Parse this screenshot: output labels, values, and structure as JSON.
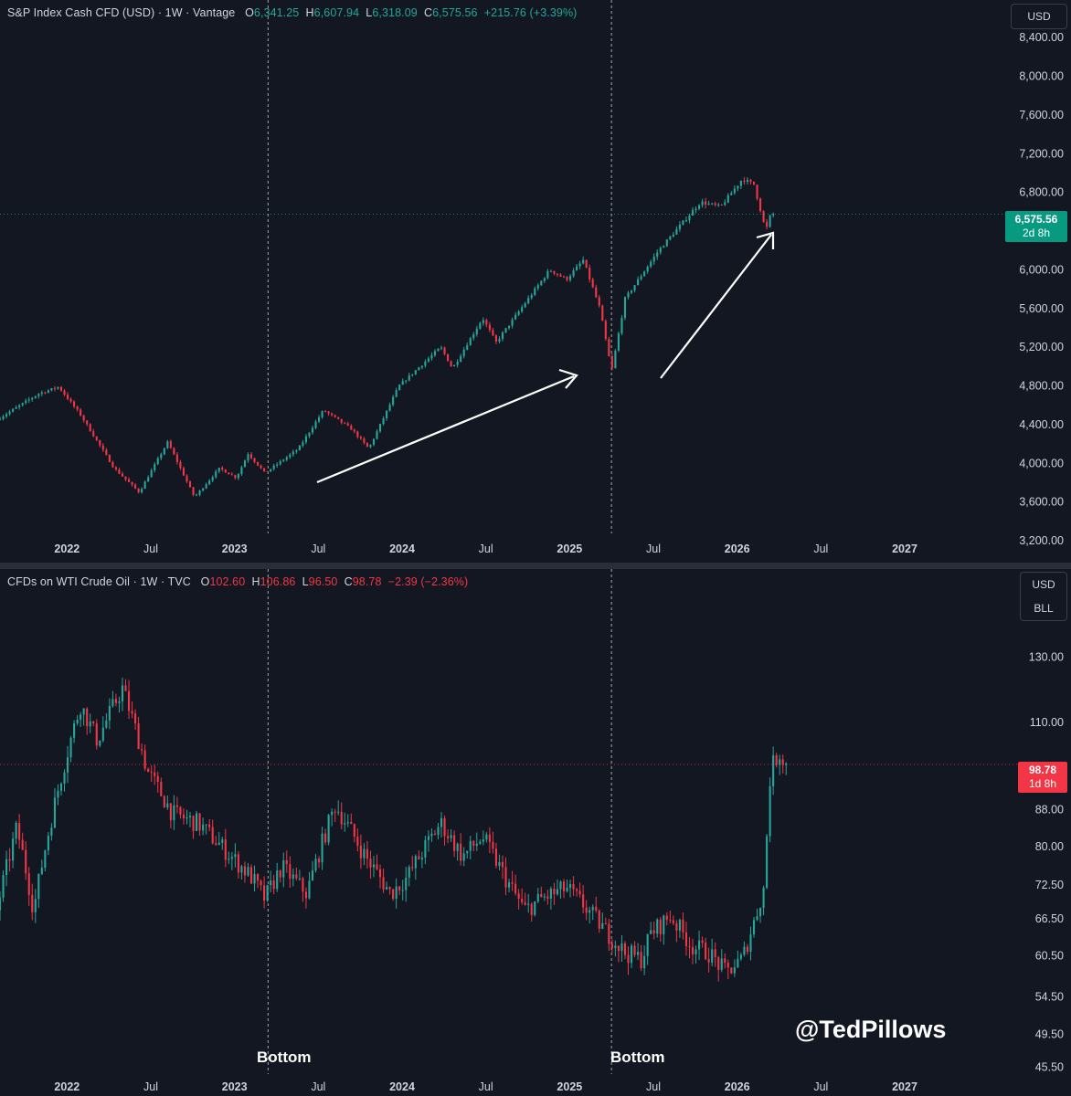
{
  "colors": {
    "up": "#26a69a",
    "down": "#f23645",
    "background": "#131722",
    "text": "#d1d4dc"
  },
  "watermark": "@TedPillows",
  "chart_data": [
    {
      "type": "candlestick",
      "legend": {
        "symbol": "S&P Index Cash CFD (USD) · 1W · Vantage",
        "o_label": "O",
        "open": "6,341.25",
        "h_label": "H",
        "high": "6,607.94",
        "l_label": "L",
        "low": "6,318.09",
        "c_label": "C",
        "close": "6,575.56",
        "change": "+215.76 (+3.39%)"
      },
      "unit_labels": [
        "USD"
      ],
      "last_price": "6,575.56",
      "countdown": "2d 8h",
      "y_ticks": [
        "8,400.00",
        "8,000.00",
        "7,600.00",
        "7,200.00",
        "6,800.00",
        "6,000.00",
        "5,600.00",
        "5,200.00",
        "4,800.00",
        "4,400.00",
        "4,000.00",
        "3,600.00",
        "3,200.00"
      ],
      "y_tick_values": [
        8400,
        8000,
        7600,
        7200,
        6800,
        6000,
        5600,
        5200,
        4800,
        4400,
        4000,
        3600,
        3200
      ],
      "x_ticks": [
        "2022",
        "Jul",
        "2023",
        "Jul",
        "2024",
        "Jul",
        "2025",
        "Jul",
        "2026",
        "Jul",
        "2027"
      ],
      "x_tick_dates": [
        2022.0,
        2022.5,
        2023.0,
        2023.5,
        2024.0,
        2024.5,
        2025.0,
        2025.5,
        2026.0,
        2026.5,
        2027.0
      ],
      "ylim": [
        3200,
        8600
      ],
      "xlim": [
        2021.6,
        2027.6
      ],
      "vertical_markers": [
        2023.2,
        2025.25
      ],
      "anchors": [
        [
          2021.6,
          4450
        ],
        [
          2021.85,
          4720
        ],
        [
          2021.97,
          4790
        ],
        [
          2022.1,
          4500
        ],
        [
          2022.3,
          3950
        ],
        [
          2022.45,
          3700
        ],
        [
          2022.62,
          4220
        ],
        [
          2022.78,
          3650
        ],
        [
          2022.93,
          3950
        ],
        [
          2023.03,
          3850
        ],
        [
          2023.1,
          4100
        ],
        [
          2023.2,
          3900
        ],
        [
          2023.4,
          4150
        ],
        [
          2023.55,
          4550
        ],
        [
          2023.72,
          4350
        ],
        [
          2023.82,
          4150
        ],
        [
          2024.0,
          4800
        ],
        [
          2024.25,
          5200
        ],
        [
          2024.32,
          4980
        ],
        [
          2024.5,
          5500
        ],
        [
          2024.58,
          5250
        ],
        [
          2024.9,
          6000
        ],
        [
          2025.0,
          5900
        ],
        [
          2025.1,
          6100
        ],
        [
          2025.2,
          5600
        ],
        [
          2025.27,
          4950
        ],
        [
          2025.35,
          5700
        ],
        [
          2025.55,
          6200
        ],
        [
          2025.8,
          6700
        ],
        [
          2025.92,
          6650
        ],
        [
          2026.05,
          6940
        ],
        [
          2026.12,
          6880
        ],
        [
          2026.19,
          6400
        ],
        [
          2026.22,
          6575.56
        ]
      ]
    },
    {
      "type": "candlestick",
      "legend": {
        "symbol": "CFDs on WTI Crude Oil · 1W · TVC",
        "o_label": "O",
        "open": "102.60",
        "h_label": "H",
        "high": "106.86",
        "l_label": "L",
        "low": "96.50",
        "c_label": "C",
        "close": "98.78",
        "change": "−2.39 (−2.36%)"
      },
      "unit_labels": [
        "USD",
        "BLL"
      ],
      "last_price": "98.78",
      "countdown": "1d 8h",
      "y_ticks": [
        "130.00",
        "110.00",
        "88.00",
        "80.00",
        "72.50",
        "66.50",
        "60.50",
        "54.50",
        "49.50",
        "45.50"
      ],
      "y_tick_values": [
        130,
        110,
        88,
        80,
        72.5,
        66.5,
        60.5,
        54.5,
        49.5,
        45.5
      ],
      "y_scale": "log",
      "x_ticks": [
        "2022",
        "Jul",
        "2023",
        "Jul",
        "2024",
        "Jul",
        "2025",
        "Jul",
        "2026",
        "Jul",
        "2027"
      ],
      "x_tick_dates": [
        2022.0,
        2022.5,
        2023.0,
        2023.5,
        2024.0,
        2024.5,
        2025.0,
        2025.5,
        2026.0,
        2026.5,
        2027.0
      ],
      "ylim": [
        44,
        150
      ],
      "xlim": [
        2021.6,
        2027.6
      ],
      "vertical_markers": [
        2023.2,
        2025.25
      ],
      "markers_text": [
        "Bottom",
        "Bottom"
      ],
      "anchors": [
        [
          2021.6,
          68
        ],
        [
          2021.72,
          84
        ],
        [
          2021.82,
          68
        ],
        [
          2021.95,
          90
        ],
        [
          2022.1,
          115
        ],
        [
          2022.2,
          105
        ],
        [
          2022.35,
          120
        ],
        [
          2022.5,
          97
        ],
        [
          2022.65,
          87
        ],
        [
          2022.8,
          85
        ],
        [
          2023.0,
          78
        ],
        [
          2023.12,
          74
        ],
        [
          2023.2,
          70
        ],
        [
          2023.3,
          76
        ],
        [
          2023.45,
          71
        ],
        [
          2023.62,
          89
        ],
        [
          2023.8,
          78
        ],
        [
          2023.95,
          71
        ],
        [
          2024.05,
          74
        ],
        [
          2024.25,
          85
        ],
        [
          2024.38,
          78
        ],
        [
          2024.5,
          82
        ],
        [
          2024.65,
          73
        ],
        [
          2024.75,
          68
        ],
        [
          2024.85,
          70
        ],
        [
          2025.0,
          72
        ],
        [
          2025.1,
          69
        ],
        [
          2025.25,
          64
        ],
        [
          2025.35,
          61
        ],
        [
          2025.45,
          60
        ],
        [
          2025.5,
          64
        ],
        [
          2025.62,
          67
        ],
        [
          2025.75,
          62
        ],
        [
          2025.85,
          61
        ],
        [
          2025.95,
          58
        ],
        [
          2026.05,
          60
        ],
        [
          2026.12,
          66
        ],
        [
          2026.18,
          72
        ],
        [
          2026.22,
          98
        ],
        [
          2026.28,
          102
        ],
        [
          2026.3,
          98.78
        ]
      ]
    }
  ]
}
